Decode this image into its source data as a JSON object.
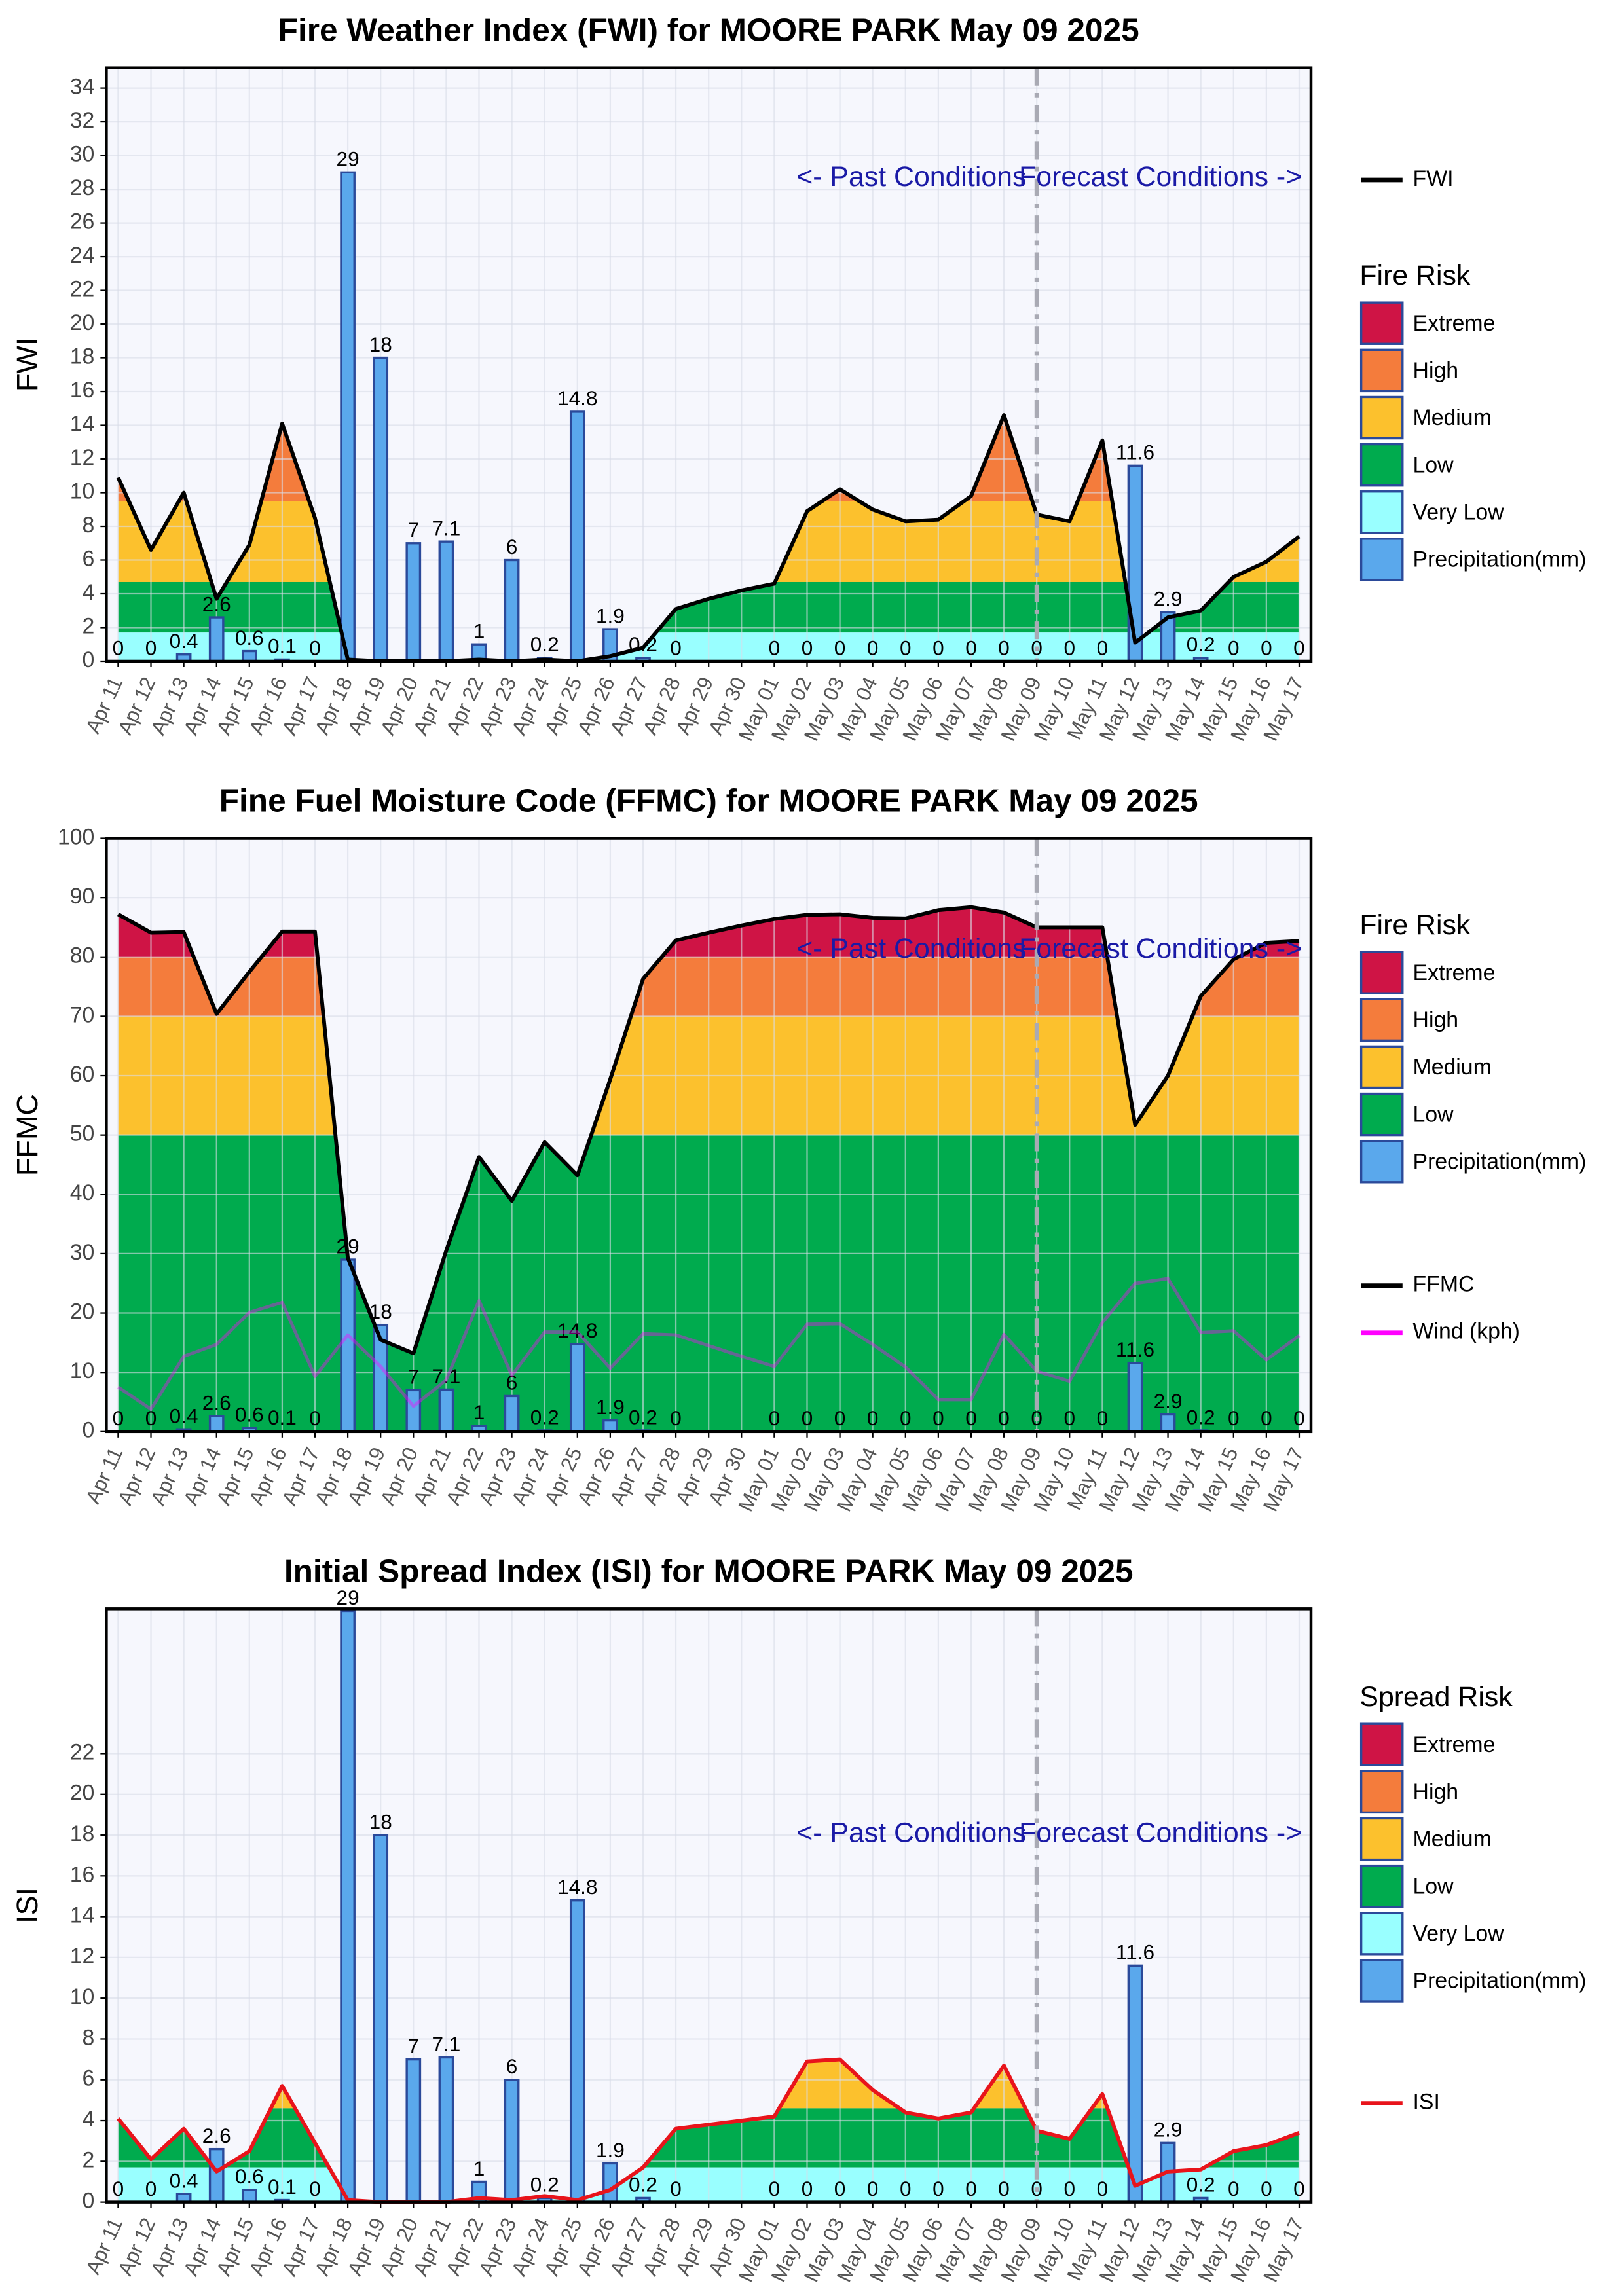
{
  "chart_data": [
    {
      "type": "combo",
      "title": "Fire Weather Index (FWI) for MOORE PARK May 09 2025",
      "ylabel": "FWI",
      "categories": [
        "Apr 11",
        "Apr 12",
        "Apr 13",
        "Apr 14",
        "Apr 15",
        "Apr 16",
        "Apr 17",
        "Apr 18",
        "Apr 19",
        "Apr 20",
        "Apr 21",
        "Apr 22",
        "Apr 23",
        "Apr 24",
        "Apr 25",
        "Apr 26",
        "Apr 27",
        "Apr 28",
        "Apr 29",
        "Apr 30",
        "May 01",
        "May 02",
        "May 03",
        "May 04",
        "May 05",
        "May 06",
        "May 07",
        "May 08",
        "May 09",
        "May 10",
        "May 11",
        "May 12",
        "May 13",
        "May 14",
        "May 15",
        "May 16",
        "May 17"
      ],
      "ylim": [
        0,
        35.2
      ],
      "yticks": [
        0,
        2,
        4,
        6,
        8,
        10,
        12,
        14,
        16,
        18,
        20,
        22,
        24,
        26,
        28,
        30,
        32,
        34
      ],
      "grid": true,
      "annotations": [
        "<- Past Conditions",
        "Forecast Conditions ->"
      ],
      "forecast_start": "May 09",
      "legend_title": "Fire Risk",
      "bands": [
        {
          "name": "Extreme",
          "color": "#cf1445",
          "from": 19
        },
        {
          "name": "High",
          "color": "#f47c3c",
          "from": 9.5
        },
        {
          "name": "Medium",
          "color": "#fcc12d",
          "from": 4.7
        },
        {
          "name": "Low",
          "color": "#00ab4e",
          "from": 1.7
        },
        {
          "name": "Very Low",
          "color": "#99ffff",
          "from": 0
        }
      ],
      "series": [
        {
          "name": "Precipitation(mm)",
          "type": "bar",
          "color": "#5aa8ec",
          "edge": "#2b4a9a",
          "values": [
            0,
            0,
            0.4,
            2.6,
            0.6,
            0.1,
            0,
            29,
            18,
            7,
            7.1,
            1,
            6,
            0.2,
            14.8,
            1.9,
            0.2,
            0,
            null,
            null,
            0,
            0,
            0,
            0,
            0,
            0,
            0,
            0,
            0,
            0,
            0,
            11.6,
            2.9,
            0.2,
            0,
            0,
            0
          ]
        },
        {
          "name": "FWI",
          "type": "line",
          "color": "#000000",
          "banded": true,
          "values": [
            10.9,
            6.6,
            10,
            3.7,
            6.9,
            14.1,
            8.5,
            0.1,
            0,
            0,
            0,
            0.1,
            0,
            0.1,
            0,
            0.3,
            0.8,
            3.1,
            3.7,
            4.2,
            4.6,
            8.9,
            10.2,
            9,
            8.3,
            8.4,
            9.8,
            14.6,
            8.7,
            8.3,
            13.1,
            1.1,
            2.6,
            3,
            5,
            5.9,
            7.4
          ]
        }
      ]
    },
    {
      "type": "combo",
      "title": "Fine Fuel Moisture Code (FFMC) for MOORE PARK May 09 2025",
      "ylabel": "FFMC",
      "categories": [
        "Apr 11",
        "Apr 12",
        "Apr 13",
        "Apr 14",
        "Apr 15",
        "Apr 16",
        "Apr 17",
        "Apr 18",
        "Apr 19",
        "Apr 20",
        "Apr 21",
        "Apr 22",
        "Apr 23",
        "Apr 24",
        "Apr 25",
        "Apr 26",
        "Apr 27",
        "Apr 28",
        "Apr 29",
        "Apr 30",
        "May 01",
        "May 02",
        "May 03",
        "May 04",
        "May 05",
        "May 06",
        "May 07",
        "May 08",
        "May 09",
        "May 10",
        "May 11",
        "May 12",
        "May 13",
        "May 14",
        "May 15",
        "May 16",
        "May 17"
      ],
      "ylim": [
        0,
        100
      ],
      "yticks": [
        0,
        10,
        20,
        30,
        40,
        50,
        60,
        70,
        80,
        90,
        100
      ],
      "grid": true,
      "annotations": [
        "<- Past Conditions",
        "Forecast Conditions ->"
      ],
      "forecast_start": "May 09",
      "legend_title": "Fire Risk",
      "bands": [
        {
          "name": "Extreme",
          "color": "#cf1445",
          "from": 80
        },
        {
          "name": "High",
          "color": "#f47c3c",
          "from": 70
        },
        {
          "name": "Medium",
          "color": "#fcc12d",
          "from": 50
        },
        {
          "name": "Low",
          "color": "#00ab4e",
          "from": 0
        }
      ],
      "series": [
        {
          "name": "Precipitation(mm)",
          "type": "bar",
          "color": "#5aa8ec",
          "edge": "#2b4a9a",
          "values": [
            0,
            0,
            0.4,
            2.6,
            0.6,
            0.1,
            0,
            29,
            18,
            7,
            7.1,
            1,
            6,
            0.2,
            14.8,
            1.9,
            0.2,
            0,
            null,
            null,
            0,
            0,
            0,
            0,
            0,
            0,
            0,
            0,
            0,
            0,
            0,
            11.6,
            2.9,
            0.2,
            0,
            0,
            0
          ]
        },
        {
          "name": "FFMC",
          "type": "line",
          "color": "#000000",
          "banded": true,
          "values": [
            87.2,
            84.1,
            84.2,
            70.4,
            77.5,
            84.3,
            84.3,
            29.3,
            15.5,
            13.2,
            30.5,
            46.3,
            38.9,
            48.8,
            43.2,
            59.4,
            76.3,
            82.8,
            84.1,
            85.3,
            86.4,
            87.1,
            87.2,
            86.6,
            86.5,
            87.9,
            88.4,
            87.5,
            85,
            85,
            85,
            51.7,
            60,
            73.4,
            79.6,
            82.4,
            82.7
          ]
        },
        {
          "name": "Wind (kph)",
          "type": "line",
          "color": "#ff00ff",
          "values": [
            7.5,
            3.8,
            12.7,
            14.7,
            20.1,
            21.8,
            9.3,
            16.3,
            11,
            4.3,
            8.7,
            22.1,
            9.5,
            16.8,
            16.8,
            10.7,
            16.5,
            16.3,
            14.5,
            12.7,
            11,
            18.1,
            18.2,
            14.7,
            10.9,
            5.4,
            5.4,
            16.4,
            10.2,
            8.5,
            18.4,
            25,
            25.8,
            16.7,
            17,
            12.1,
            16.2
          ]
        }
      ]
    },
    {
      "type": "combo",
      "title": "Initial Spread Index (ISI) for MOORE PARK May 09 2025",
      "ylabel": "ISI",
      "categories": [
        "Apr 11",
        "Apr 12",
        "Apr 13",
        "Apr 14",
        "Apr 15",
        "Apr 16",
        "Apr 17",
        "Apr 18",
        "Apr 19",
        "Apr 20",
        "Apr 21",
        "Apr 22",
        "Apr 23",
        "Apr 24",
        "Apr 25",
        "Apr 26",
        "Apr 27",
        "Apr 28",
        "Apr 29",
        "Apr 30",
        "May 01",
        "May 02",
        "May 03",
        "May 04",
        "May 05",
        "May 06",
        "May 07",
        "May 08",
        "May 09",
        "May 10",
        "May 11",
        "May 12",
        "May 13",
        "May 14",
        "May 15",
        "May 16",
        "May 17"
      ],
      "ylim": [
        0,
        29.1
      ],
      "yticks": [
        0,
        2,
        4,
        6,
        8,
        10,
        12,
        14,
        16,
        18,
        20,
        22
      ],
      "grid": true,
      "annotations": [
        "<- Past Conditions",
        "Forecast Conditions ->"
      ],
      "forecast_start": "May 09",
      "legend_title": "Spread Risk",
      "bands": [
        {
          "name": "Extreme",
          "color": "#cf1445",
          "from": 16
        },
        {
          "name": "High",
          "color": "#f47c3c",
          "from": 8
        },
        {
          "name": "Medium",
          "color": "#fcc12d",
          "from": 4.6
        },
        {
          "name": "Low",
          "color": "#00ab4e",
          "from": 1.7
        },
        {
          "name": "Very Low",
          "color": "#99ffff",
          "from": 0
        }
      ],
      "series": [
        {
          "name": "Precipitation(mm)",
          "type": "bar",
          "color": "#5aa8ec",
          "edge": "#2b4a9a",
          "values": [
            0,
            0,
            0.4,
            2.6,
            0.6,
            0.1,
            0,
            29,
            18,
            7,
            7.1,
            1,
            6,
            0.2,
            14.8,
            1.9,
            0.2,
            0,
            null,
            null,
            0,
            0,
            0,
            0,
            0,
            0,
            0,
            0,
            0,
            0,
            0,
            11.6,
            2.9,
            0.2,
            0,
            0,
            0
          ]
        },
        {
          "name": "ISI",
          "type": "line",
          "color": "#e8141b",
          "banded": true,
          "values": [
            4.1,
            2.1,
            3.6,
            1.5,
            2.5,
            5.7,
            2.9,
            0.1,
            0,
            0,
            0,
            0.2,
            0.1,
            0.3,
            0.1,
            0.6,
            1.7,
            3.6,
            3.8,
            4,
            4.2,
            6.9,
            7,
            5.5,
            4.4,
            4.1,
            4.4,
            6.7,
            3.5,
            3.1,
            5.3,
            0.8,
            1.5,
            1.6,
            2.5,
            2.8,
            3.4
          ]
        }
      ]
    }
  ]
}
